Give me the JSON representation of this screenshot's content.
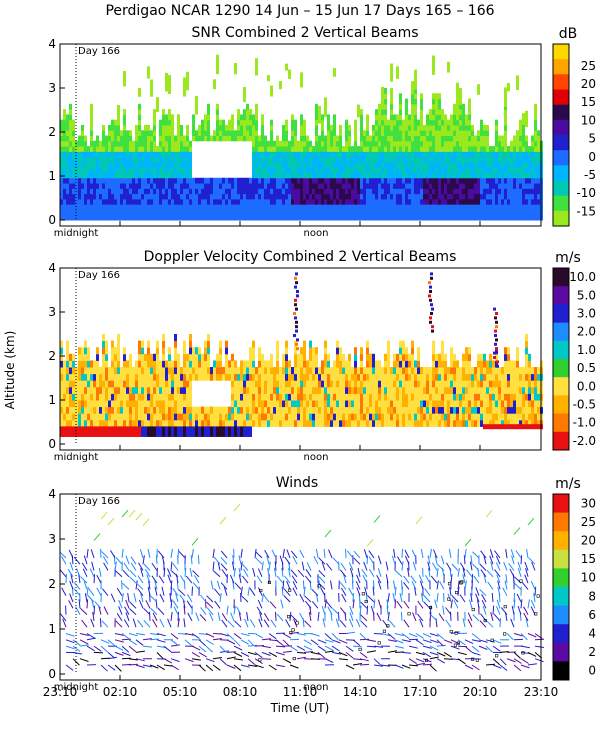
{
  "figure": {
    "title": "Perdigao NCAR 1290  14 Jun – 15 Jun 17 Days 165 – 166",
    "ylabel": "Altitude (km)",
    "xlabel": "Time (UT)",
    "x_ticks": [
      "23:10",
      "02:10",
      "05:10",
      "08:10",
      "11:10",
      "14:10",
      "17:10",
      "20:10",
      "23:10"
    ],
    "marker_midnight": "midnight",
    "marker_noon": "noon",
    "marker_day": "Day 166"
  },
  "chart_data": [
    {
      "type": "heatmap",
      "title": "SNR Combined 2 Vertical Beams",
      "units": "dB",
      "ylim": [
        0,
        4
      ],
      "y_ticks": [
        "0",
        "1",
        "2",
        "3",
        "4"
      ],
      "colorbar": {
        "labels": [
          "25",
          "20",
          "15",
          "10",
          "5",
          "0",
          "-5",
          "-10",
          "-15"
        ],
        "colors": [
          "#ffd700",
          "#ffa500",
          "#ff4500",
          "#e00000",
          "#2a0a4a",
          "#4b0aa0",
          "#2020d0",
          "#1e6cff",
          "#00b4ff",
          "#00c8b4",
          "#40e040",
          "#9be81e"
        ]
      }
    },
    {
      "type": "heatmap",
      "title": "Doppler Velocity Combined 2 Vertical Beams",
      "units": "m/s",
      "ylim": [
        0,
        4
      ],
      "y_ticks": [
        "0",
        "1",
        "2",
        "3",
        "4"
      ],
      "colorbar": {
        "labels": [
          "10.0",
          "5.0",
          "3.0",
          "2.0",
          "1.0",
          "0.5",
          "0.0",
          "-0.5",
          "-1.0",
          "-2.0"
        ],
        "colors": [
          "#2a0a2a",
          "#5a0aa0",
          "#2020d0",
          "#1e8cff",
          "#00c8c8",
          "#30d030",
          "#ffe040",
          "#ffb000",
          "#ff7800",
          "#e81010"
        ]
      }
    },
    {
      "type": "scatter",
      "title": "Winds",
      "units": "m/s",
      "ylim": [
        0,
        4
      ],
      "y_ticks": [
        "0",
        "1",
        "2",
        "3",
        "4"
      ],
      "colorbar": {
        "labels": [
          "30",
          "25",
          "20",
          "15",
          "10",
          "8",
          "6",
          "4",
          "2",
          "0"
        ],
        "colors": [
          "#e81010",
          "#ff7800",
          "#ffb000",
          "#c8e040",
          "#30d030",
          "#00c8c8",
          "#1e8cff",
          "#2020d0",
          "#5a0aa0",
          "#000000"
        ]
      }
    }
  ]
}
